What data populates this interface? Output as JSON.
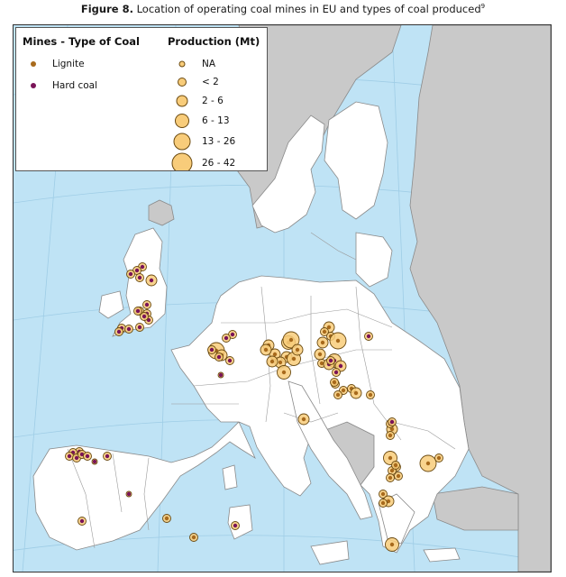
{
  "figure": {
    "label": "Figure 8.",
    "caption": " Location of operating coal mines in EU and types of coal produced",
    "footnote_ref": "9"
  },
  "legend": {
    "type_title": "Mines - Type of Coal",
    "types": [
      {
        "label": "Lignite",
        "color": "#a86a1c"
      },
      {
        "label": "Hard coal",
        "color": "#7a1458"
      }
    ],
    "production_title": "Production (Mt)",
    "classes": [
      "NA",
      "< 2",
      "2 - 6",
      "6 - 13",
      "13 - 26",
      "26 - 42"
    ]
  },
  "colors": {
    "sea": "#bfe3f5",
    "eu_land": "#ffffff",
    "non_eu_land": "#c9c9c9",
    "borders": "#8a8a8a",
    "production_fill": "#f8cc7a",
    "production_stroke": "#6b4a10"
  },
  "mines": [
    {
      "type": "Hard coal",
      "cls": 1
    },
    {
      "type": "Hard coal",
      "cls": 1
    },
    {
      "type": "Hard coal",
      "cls": 1
    },
    {
      "type": "Hard coal",
      "cls": 1
    },
    {
      "type": "Hard coal",
      "cls": 2
    },
    {
      "type": "Hard coal",
      "cls": 1
    },
    {
      "type": "Hard coal",
      "cls": 1
    },
    {
      "type": "Hard coal",
      "cls": 1
    },
    {
      "type": "Hard coal",
      "cls": 1
    },
    {
      "type": "Hard coal",
      "cls": 1
    },
    {
      "type": "Hard coal",
      "cls": 1
    },
    {
      "type": "Hard coal",
      "cls": 1
    },
    {
      "type": "Hard coal",
      "cls": 1
    },
    {
      "type": "Hard coal",
      "cls": 1
    },
    {
      "type": "Hard coal",
      "cls": 1
    },
    {
      "type": "Hard coal",
      "cls": 1
    },
    {
      "type": "Lignite",
      "cls": 4
    },
    {
      "type": "Lignite",
      "cls": 2
    },
    {
      "type": "Hard coal",
      "cls": 1
    },
    {
      "type": "Hard coal",
      "cls": 1
    },
    {
      "type": "Hard coal",
      "cls": 1
    },
    {
      "type": "Hard coal",
      "cls": 0
    },
    {
      "type": "Lignite",
      "cls": 2
    },
    {
      "type": "Lignite",
      "cls": 2
    },
    {
      "type": "Lignite",
      "cls": 3
    },
    {
      "type": "Lignite",
      "cls": 2
    },
    {
      "type": "Lignite",
      "cls": 2
    },
    {
      "type": "Lignite",
      "cls": 3
    },
    {
      "type": "Lignite",
      "cls": 4
    },
    {
      "type": "Lignite",
      "cls": 3
    },
    {
      "type": "Lignite",
      "cls": 2
    },
    {
      "type": "Lignite",
      "cls": 2
    },
    {
      "type": "Lignite",
      "cls": 2
    },
    {
      "type": "Lignite",
      "cls": 2
    },
    {
      "type": "Lignite",
      "cls": 1
    },
    {
      "type": "Lignite",
      "cls": 1
    },
    {
      "type": "Lignite",
      "cls": 2
    },
    {
      "type": "Lignite",
      "cls": 2
    },
    {
      "type": "Lignite",
      "cls": 1
    },
    {
      "type": "Lignite",
      "cls": 4
    },
    {
      "type": "Hard coal",
      "cls": 3
    },
    {
      "type": "Hard coal",
      "cls": 2
    },
    {
      "type": "Hard coal",
      "cls": 2
    },
    {
      "type": "Hard coal",
      "cls": 1
    },
    {
      "type": "Hard coal",
      "cls": 1
    },
    {
      "type": "Lignite",
      "cls": 1
    },
    {
      "type": "Lignite",
      "cls": 1
    },
    {
      "type": "Lignite",
      "cls": 1
    },
    {
      "type": "Lignite",
      "cls": 1
    },
    {
      "type": "Lignite",
      "cls": 2
    },
    {
      "type": "Lignite",
      "cls": 1
    },
    {
      "type": "Lignite",
      "cls": 1
    },
    {
      "type": "Hard coal",
      "cls": 1
    },
    {
      "type": "Lignite",
      "cls": 2
    },
    {
      "type": "Lignite",
      "cls": 2
    },
    {
      "type": "Lignite",
      "cls": 1
    },
    {
      "type": "Hard coal",
      "cls": 1
    },
    {
      "type": "Hard coal",
      "cls": 1
    },
    {
      "type": "Lignite",
      "cls": 3
    },
    {
      "type": "Lignite",
      "cls": 1
    },
    {
      "type": "Lignite",
      "cls": 4
    },
    {
      "type": "Lignite",
      "cls": 1
    },
    {
      "type": "Lignite",
      "cls": 1
    },
    {
      "type": "Lignite",
      "cls": 1
    },
    {
      "type": "Lignite",
      "cls": 1
    },
    {
      "type": "Lignite",
      "cls": 1
    },
    {
      "type": "Lignite",
      "cls": 1
    },
    {
      "type": "Lignite",
      "cls": 2
    },
    {
      "type": "Lignite",
      "cls": 1
    },
    {
      "type": "Lignite",
      "cls": 3
    },
    {
      "type": "Hard coal",
      "cls": 1
    },
    {
      "type": "Hard coal",
      "cls": 1
    },
    {
      "type": "Hard coal",
      "cls": 1
    },
    {
      "type": "Hard coal",
      "cls": 1
    },
    {
      "type": "Hard coal",
      "cls": 1
    },
    {
      "type": "Hard coal",
      "cls": 1
    },
    {
      "type": "Hard coal",
      "cls": 1
    },
    {
      "type": "Hard coal",
      "cls": 0
    },
    {
      "type": "Hard coal",
      "cls": 0
    },
    {
      "type": "Hard coal",
      "cls": 1
    },
    {
      "type": "Hard coal",
      "cls": 1
    },
    {
      "type": "Hard coal",
      "cls": 1
    },
    {
      "type": "Lignite",
      "cls": 1
    },
    {
      "type": "Lignite",
      "cls": 1
    }
  ]
}
